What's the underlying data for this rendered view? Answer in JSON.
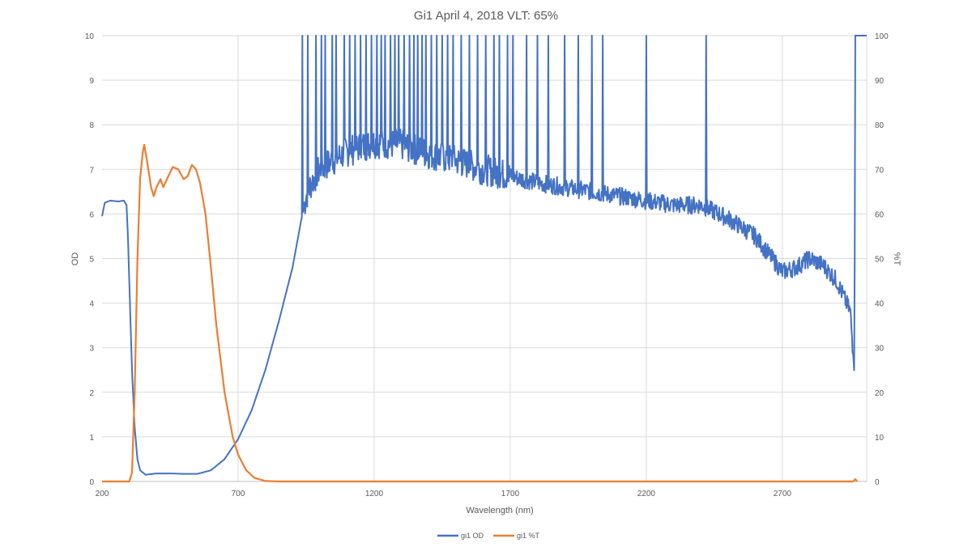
{
  "chart_data": {
    "type": "line",
    "title": "Gi1 April 4, 2018 VLT: 65%",
    "xlabel": "Wavelength (nm)",
    "ylabel": "OD",
    "y2label": "%T",
    "xlim": [
      200,
      3010
    ],
    "ylim": [
      0,
      10
    ],
    "y2lim": [
      0,
      100
    ],
    "xticks": [
      200,
      700,
      1200,
      1700,
      2200,
      2700
    ],
    "yticks": [
      0,
      1,
      2,
      3,
      4,
      5,
      6,
      7,
      8,
      9,
      10
    ],
    "y2ticks": [
      0,
      10,
      20,
      30,
      40,
      50,
      60,
      70,
      80,
      90,
      100
    ],
    "grid": true,
    "legend": "bottom",
    "series": [
      {
        "name": "gi1 OD",
        "axis": "left",
        "color": "#4472C4",
        "x": [
          200,
          210,
          230,
          260,
          280,
          290,
          295,
          300,
          310,
          320,
          330,
          340,
          360,
          400,
          450,
          500,
          550,
          600,
          650,
          700,
          750,
          800,
          850,
          900,
          930,
          950,
          970,
          1000,
          1100,
          1200,
          1300,
          1400,
          1500,
          1600,
          1700,
          1800,
          1900,
          2000,
          2100,
          2200,
          2300,
          2400,
          2500,
          2600,
          2700,
          2750,
          2800,
          2850,
          2900,
          2950,
          2965,
          2968,
          2969,
          3010
        ],
        "y": [
          5.95,
          6.25,
          6.3,
          6.28,
          6.3,
          6.2,
          5.5,
          4.5,
          2.5,
          1.2,
          0.5,
          0.25,
          0.15,
          0.18,
          0.18,
          0.17,
          0.17,
          0.25,
          0.5,
          0.95,
          1.6,
          2.5,
          3.6,
          4.8,
          5.8,
          6.4,
          6.7,
          7.0,
          7.4,
          7.6,
          7.55,
          7.35,
          7.2,
          7.0,
          6.85,
          6.7,
          6.6,
          6.5,
          6.4,
          6.3,
          6.2,
          6.2,
          5.9,
          5.5,
          4.7,
          4.8,
          5.0,
          4.85,
          4.5,
          3.8,
          2.4,
          10,
          10,
          10
        ],
        "spikes_to_max": [
          935,
          955,
          985,
          1005,
          1020,
          1045,
          1060,
          1090,
          1110,
          1130,
          1150,
          1170,
          1190,
          1210,
          1225,
          1240,
          1260,
          1275,
          1290,
          1310,
          1330,
          1345,
          1360,
          1375,
          1390,
          1410,
          1430,
          1450,
          1470,
          1490,
          1520,
          1550,
          1580,
          1610,
          1640,
          1660,
          1690,
          1710,
          1760,
          1800,
          1840,
          1900,
          1950,
          2000,
          2040,
          2200,
          2420
        ]
      },
      {
        "name": "gi1 %T",
        "axis": "right",
        "color": "#ED7D31",
        "x": [
          200,
          300,
          310,
          320,
          330,
          340,
          350,
          355,
          365,
          380,
          390,
          400,
          415,
          425,
          440,
          460,
          480,
          500,
          515,
          530,
          545,
          560,
          580,
          600,
          620,
          650,
          680,
          700,
          730,
          760,
          800,
          850,
          2960,
          2968,
          2975
        ],
        "y": [
          0,
          0,
          2,
          20,
          50,
          68,
          74,
          75.5,
          72,
          66,
          64,
          66,
          67.8,
          66,
          68,
          70.5,
          70,
          67.8,
          68.5,
          71,
          70,
          67,
          60,
          48,
          35,
          20,
          10,
          6,
          2.5,
          0.8,
          0.1,
          0,
          0,
          0.5,
          0
        ]
      }
    ]
  }
}
